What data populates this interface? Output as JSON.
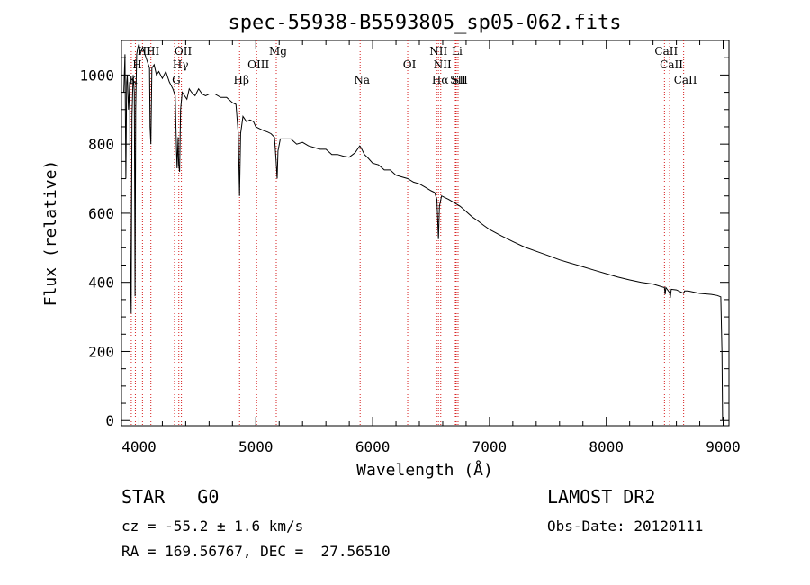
{
  "chart_data": {
    "type": "line",
    "title": "spec-55938-B5593805_sp05-062.fits",
    "xlabel": "Wavelength (Å)",
    "ylabel": "Flux (relative)",
    "xlim": [
      3850,
      9050
    ],
    "ylim": [
      -15,
      1100
    ],
    "x_ticks": [
      4000,
      5000,
      6000,
      7000,
      8000,
      9000
    ],
    "y_ticks": [
      0,
      200,
      400,
      600,
      800,
      1000
    ],
    "grid": false,
    "series": [
      {
        "values": [
          [
            3870,
            950
          ],
          [
            3880,
            1060
          ],
          [
            3888,
            700
          ],
          [
            3895,
            980
          ],
          [
            3900,
            1000
          ],
          [
            3910,
            900
          ],
          [
            3920,
            980
          ],
          [
            3927,
            450
          ],
          [
            3933,
            310
          ],
          [
            3940,
            880
          ],
          [
            3950,
            1000
          ],
          [
            3960,
            950
          ],
          [
            3966,
            360
          ],
          [
            3972,
            900
          ],
          [
            3980,
            1060
          ],
          [
            3990,
            1080
          ],
          [
            4000,
            1090
          ],
          [
            4010,
            1060
          ],
          [
            4030,
            1080
          ],
          [
            4050,
            1060
          ],
          [
            4070,
            1040
          ],
          [
            4090,
            1020
          ],
          [
            4095,
            850
          ],
          [
            4102,
            800
          ],
          [
            4110,
            1020
          ],
          [
            4130,
            1030
          ],
          [
            4150,
            1000
          ],
          [
            4170,
            1010
          ],
          [
            4200,
            990
          ],
          [
            4230,
            1010
          ],
          [
            4260,
            980
          ],
          [
            4290,
            960
          ],
          [
            4310,
            940
          ],
          [
            4320,
            800
          ],
          [
            4326,
            730
          ],
          [
            4335,
            820
          ],
          [
            4340,
            740
          ],
          [
            4348,
            720
          ],
          [
            4356,
            900
          ],
          [
            4370,
            950
          ],
          [
            4390,
            940
          ],
          [
            4410,
            930
          ],
          [
            4430,
            960
          ],
          [
            4450,
            950
          ],
          [
            4480,
            940
          ],
          [
            4510,
            960
          ],
          [
            4540,
            945
          ],
          [
            4570,
            940
          ],
          [
            4600,
            945
          ],
          [
            4650,
            945
          ],
          [
            4700,
            935
          ],
          [
            4750,
            935
          ],
          [
            4800,
            920
          ],
          [
            4830,
            915
          ],
          [
            4850,
            830
          ],
          [
            4861,
            650
          ],
          [
            4870,
            830
          ],
          [
            4890,
            880
          ],
          [
            4920,
            865
          ],
          [
            4950,
            870
          ],
          [
            4980,
            865
          ],
          [
            5000,
            850
          ],
          [
            5030,
            845
          ],
          [
            5060,
            840
          ],
          [
            5100,
            835
          ],
          [
            5130,
            830
          ],
          [
            5160,
            820
          ],
          [
            5172,
            760
          ],
          [
            5183,
            700
          ],
          [
            5190,
            780
          ],
          [
            5210,
            815
          ],
          [
            5250,
            815
          ],
          [
            5300,
            815
          ],
          [
            5350,
            800
          ],
          [
            5400,
            805
          ],
          [
            5450,
            795
          ],
          [
            5500,
            790
          ],
          [
            5550,
            785
          ],
          [
            5600,
            785
          ],
          [
            5650,
            770
          ],
          [
            5700,
            770
          ],
          [
            5750,
            765
          ],
          [
            5800,
            762
          ],
          [
            5850,
            775
          ],
          [
            5890,
            795
          ],
          [
            5900,
            790
          ],
          [
            5930,
            770
          ],
          [
            5960,
            760
          ],
          [
            6000,
            745
          ],
          [
            6050,
            740
          ],
          [
            6100,
            725
          ],
          [
            6150,
            725
          ],
          [
            6200,
            710
          ],
          [
            6250,
            705
          ],
          [
            6300,
            700
          ],
          [
            6350,
            690
          ],
          [
            6400,
            685
          ],
          [
            6450,
            675
          ],
          [
            6500,
            665
          ],
          [
            6530,
            660
          ],
          [
            6550,
            640
          ],
          [
            6563,
            525
          ],
          [
            6572,
            620
          ],
          [
            6590,
            650
          ],
          [
            6620,
            645
          ],
          [
            6650,
            640
          ],
          [
            6700,
            630
          ],
          [
            6750,
            620
          ],
          [
            6800,
            605
          ],
          [
            6850,
            590
          ],
          [
            6900,
            578
          ],
          [
            6950,
            565
          ],
          [
            7000,
            553
          ],
          [
            7100,
            535
          ],
          [
            7200,
            518
          ],
          [
            7300,
            502
          ],
          [
            7400,
            490
          ],
          [
            7500,
            478
          ],
          [
            7600,
            465
          ],
          [
            7700,
            455
          ],
          [
            7800,
            445
          ],
          [
            7900,
            435
          ],
          [
            8000,
            425
          ],
          [
            8100,
            415
          ],
          [
            8200,
            407
          ],
          [
            8300,
            400
          ],
          [
            8400,
            395
          ],
          [
            8498,
            385
          ],
          [
            8504,
            365
          ],
          [
            8510,
            385
          ],
          [
            8542,
            370
          ],
          [
            8548,
            355
          ],
          [
            8556,
            380
          ],
          [
            8600,
            378
          ],
          [
            8662,
            368
          ],
          [
            8670,
            375
          ],
          [
            8700,
            375
          ],
          [
            8800,
            368
          ],
          [
            8900,
            365
          ],
          [
            8950,
            362
          ],
          [
            8980,
            358
          ],
          [
            8990,
            200
          ],
          [
            8995,
            0
          ]
        ]
      }
    ],
    "lines": [
      {
        "label": "K",
        "x": 3934
      },
      {
        "label": "H",
        "x": 3969
      },
      {
        "label": "HI",
        "x": 4030
      },
      {
        "label": "HI",
        "x": 4102
      },
      {
        "label": "G",
        "x": 4304
      },
      {
        "label": "Hγ",
        "x": 4341
      },
      {
        "label": "OII",
        "x": 4363
      },
      {
        "label": "Hβ",
        "x": 4861
      },
      {
        "label": "OIII",
        "x": 5007
      },
      {
        "label": "Mg",
        "x": 5175
      },
      {
        "label": "Na",
        "x": 5893
      },
      {
        "label": "OI",
        "x": 6300
      },
      {
        "label": "NII",
        "x": 6548
      },
      {
        "label": "Hα",
        "x": 6563
      },
      {
        "label": "NII",
        "x": 6583
      },
      {
        "label": "SII",
        "x": 6716
      },
      {
        "label": "Li",
        "x": 6708
      },
      {
        "label": "SII",
        "x": 6731
      },
      {
        "label": "CaII",
        "x": 8498
      },
      {
        "label": "CaII",
        "x": 8542
      },
      {
        "label": "CaII",
        "x": 8662
      }
    ]
  },
  "footer": {
    "object_class": "STAR   G0",
    "survey": "LAMOST DR2",
    "redshift": "cz = -55.2 ± 1.6 km/s",
    "obs_date": "Obs-Date: 20120111",
    "coordinates": "RA = 169.56767, DEC =  27.56510"
  }
}
